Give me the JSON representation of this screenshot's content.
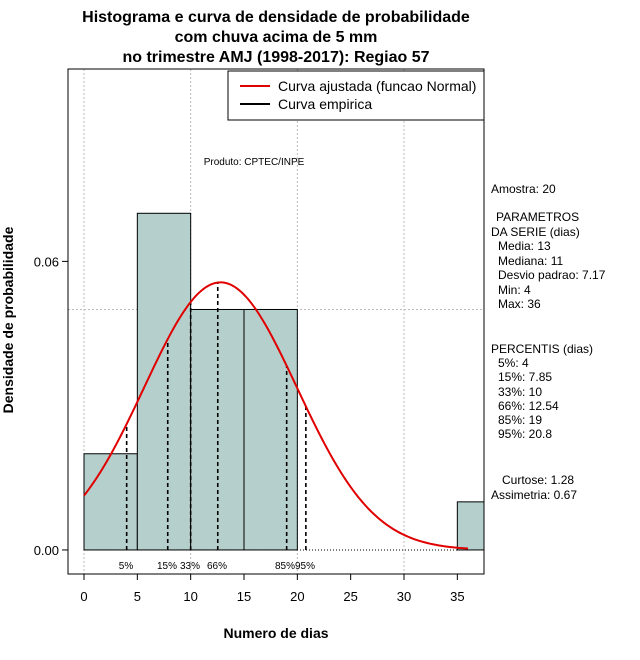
{
  "chart_data": {
    "type": "bar",
    "title_lines": [
      "Histograma e curva de densidade de probabilidade",
      "com chuva acima de 5 mm",
      "no trimestre AMJ (1998-2017): Regiao 57"
    ],
    "xlabel": "Numero de dias",
    "ylabel": "Densidade de probabilidade",
    "xlim": [
      -1.5,
      37.5
    ],
    "ylim": [
      -0.005,
      0.1
    ],
    "x_ticks": [
      0,
      5,
      10,
      15,
      20,
      25,
      30,
      35
    ],
    "x_tick_labels": [
      "0",
      "5",
      "10",
      "15",
      "20",
      "25",
      "30",
      "35"
    ],
    "y_ticks": [
      0.0,
      0.06
    ],
    "y_tick_labels": [
      "0.00",
      "0.06"
    ],
    "grid_x": [
      0,
      10,
      20,
      30
    ],
    "grid_y": [
      0.05,
      0.1
    ],
    "bins": [
      {
        "start": 0,
        "end": 5,
        "density": 0.02
      },
      {
        "start": 5,
        "end": 10,
        "density": 0.07
      },
      {
        "start": 10,
        "end": 15,
        "density": 0.05
      },
      {
        "start": 15,
        "end": 20,
        "density": 0.05
      },
      {
        "start": 35,
        "end": 40,
        "density": 0.01
      }
    ],
    "normal_curve": {
      "name": "Curva ajustada (funcao Normal)",
      "mean": 12.8,
      "sd": 7.17,
      "x_from": 0,
      "x_to": 36,
      "color": "#e00000"
    },
    "empirical_curve": {
      "name": "Curva empirica",
      "color": "#000000"
    },
    "percentile_lines": [
      {
        "label": "5%",
        "x": 4
      },
      {
        "label": "15%",
        "x": 7.85
      },
      {
        "label": "33%",
        "x": 10
      },
      {
        "label": "66%",
        "x": 12.54
      },
      {
        "label": "85%",
        "x": 19
      },
      {
        "label": "95%",
        "x": 20.8
      }
    ],
    "percentile_label_text": [
      "5%",
      "15%",
      "33%",
      "66%",
      "85%",
      "95%"
    ],
    "legend": [
      "Curva ajustada (funcao Normal)",
      "Curva empirica"
    ],
    "legend_position": "top-right",
    "annotation": "Produto: CPTEC/INPE",
    "colors": {
      "bar_fill": "#b5cfcd",
      "bar_stroke": "#000000",
      "grid": "#bbbbbb",
      "curve": "#e00000"
    }
  },
  "side_panel": {
    "amostra": "Amostra: 20",
    "parametros_title_1": "PARAMETROS",
    "parametros_title_2": "DA SERIE (dias)",
    "media": "Media: 13",
    "mediana": "Mediana: 11",
    "desvio": "Desvio padrao: 7.17",
    "min": "Min: 4",
    "max": "Max: 36",
    "percentis_title": "PERCENTIS (dias)",
    "p5": "5%: 4",
    "p15": "15%: 7.85",
    "p33": "33%: 10",
    "p66": "66%: 12.54",
    "p85": "85%: 19",
    "p95": "95%: 20.8",
    "curtose": "Curtose: 1.28",
    "assimetria": "Assimetria: 0.67"
  }
}
